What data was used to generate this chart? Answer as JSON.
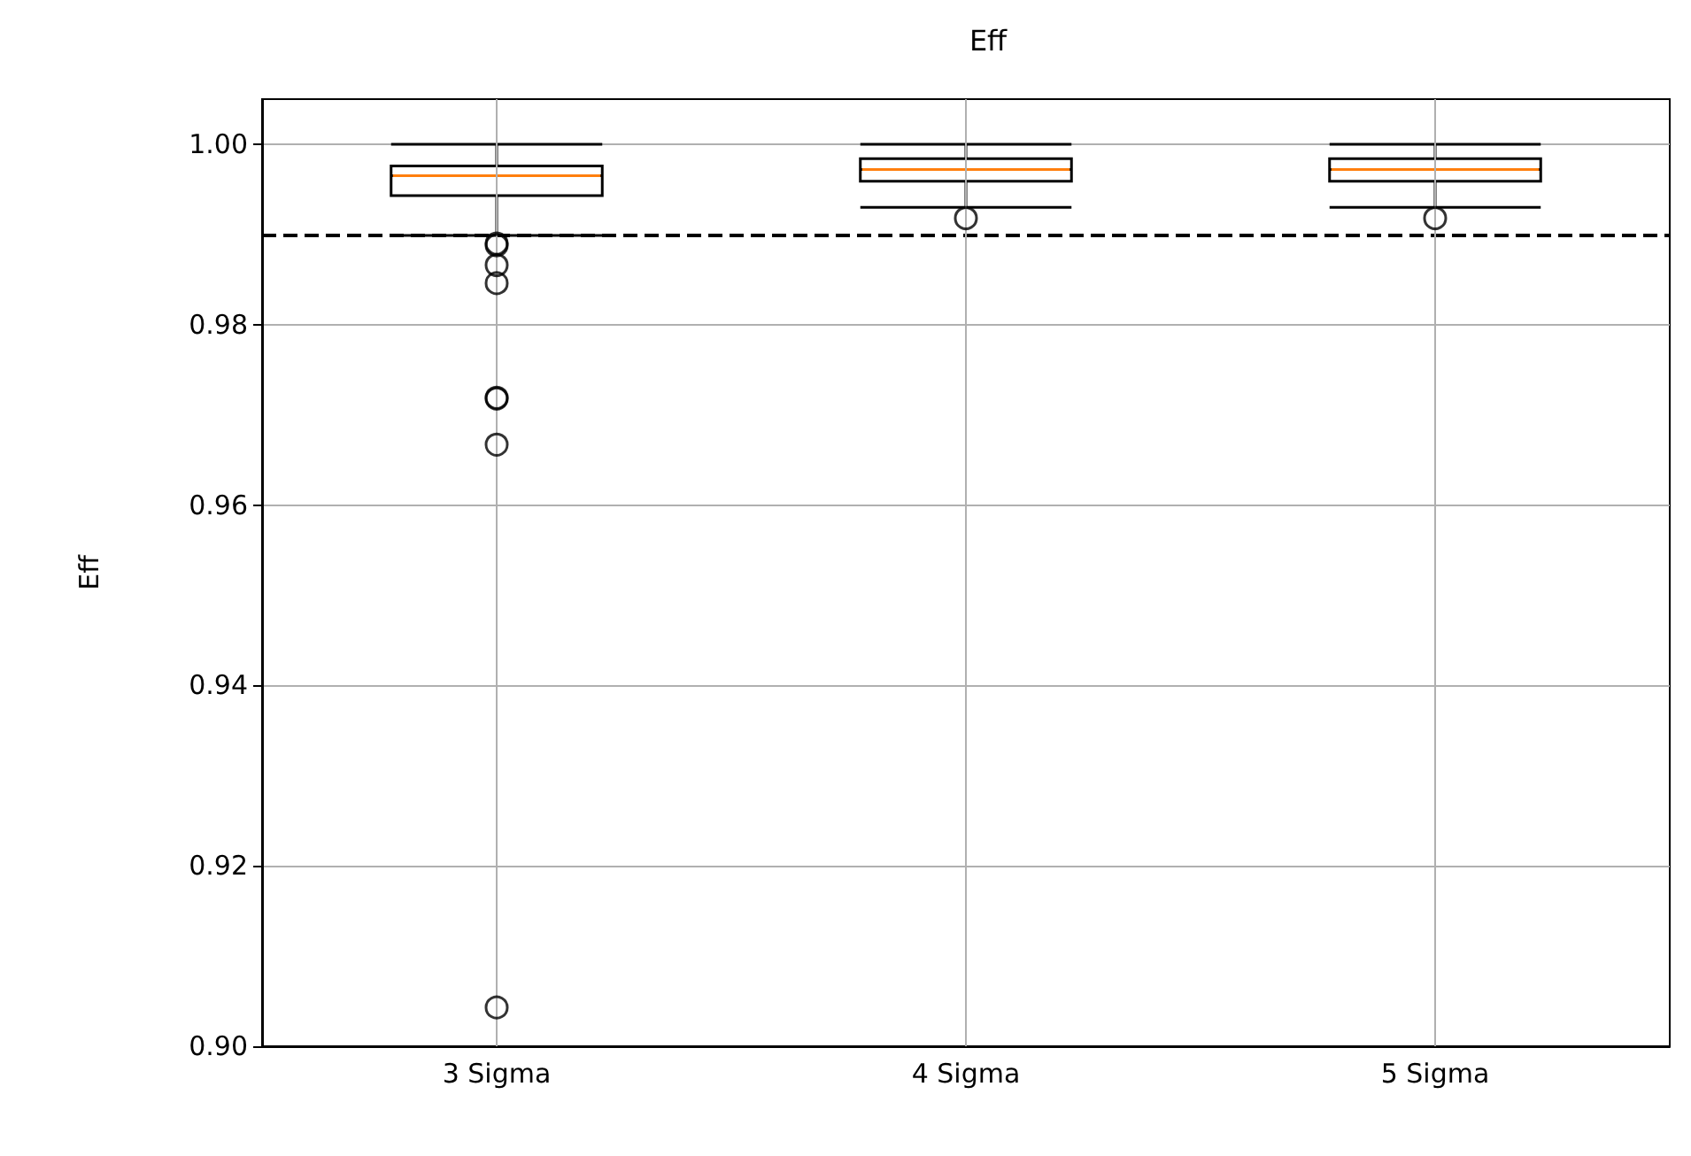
{
  "chart_data": {
    "type": "box",
    "title": "Eff",
    "ylabel": "Eff",
    "categories": [
      "3 Sigma",
      "4 Sigma",
      "5 Sigma"
    ],
    "boxes": [
      {
        "low": 0.9899,
        "q1": 0.9943,
        "median": 0.9965,
        "q3": 0.9976,
        "high": 1.0,
        "outliers": [
          0.989,
          0.9888,
          0.9866,
          0.9846,
          0.9719,
          0.9718,
          0.9667,
          0.9043
        ]
      },
      {
        "low": 0.993,
        "q1": 0.9959,
        "median": 0.9972,
        "q3": 0.9984,
        "high": 1.0,
        "outliers": [
          0.9918
        ]
      },
      {
        "low": 0.993,
        "q1": 0.9959,
        "median": 0.9972,
        "q3": 0.9984,
        "high": 1.0,
        "outliers": [
          0.9918
        ]
      }
    ],
    "ylim": [
      0.9,
      1.005
    ],
    "yticks": [
      {
        "value": 0.9,
        "label": "0.90"
      },
      {
        "value": 0.92,
        "label": "0.92"
      },
      {
        "value": 0.94,
        "label": "0.94"
      },
      {
        "value": 0.96,
        "label": "0.96"
      },
      {
        "value": 0.98,
        "label": "0.98"
      },
      {
        "value": 1.0,
        "label": "1.00"
      }
    ],
    "grid": true,
    "ref_lines": [
      {
        "axis": "y",
        "value": 0.99,
        "color": "#000000",
        "line_style": "dashed"
      }
    ]
  }
}
